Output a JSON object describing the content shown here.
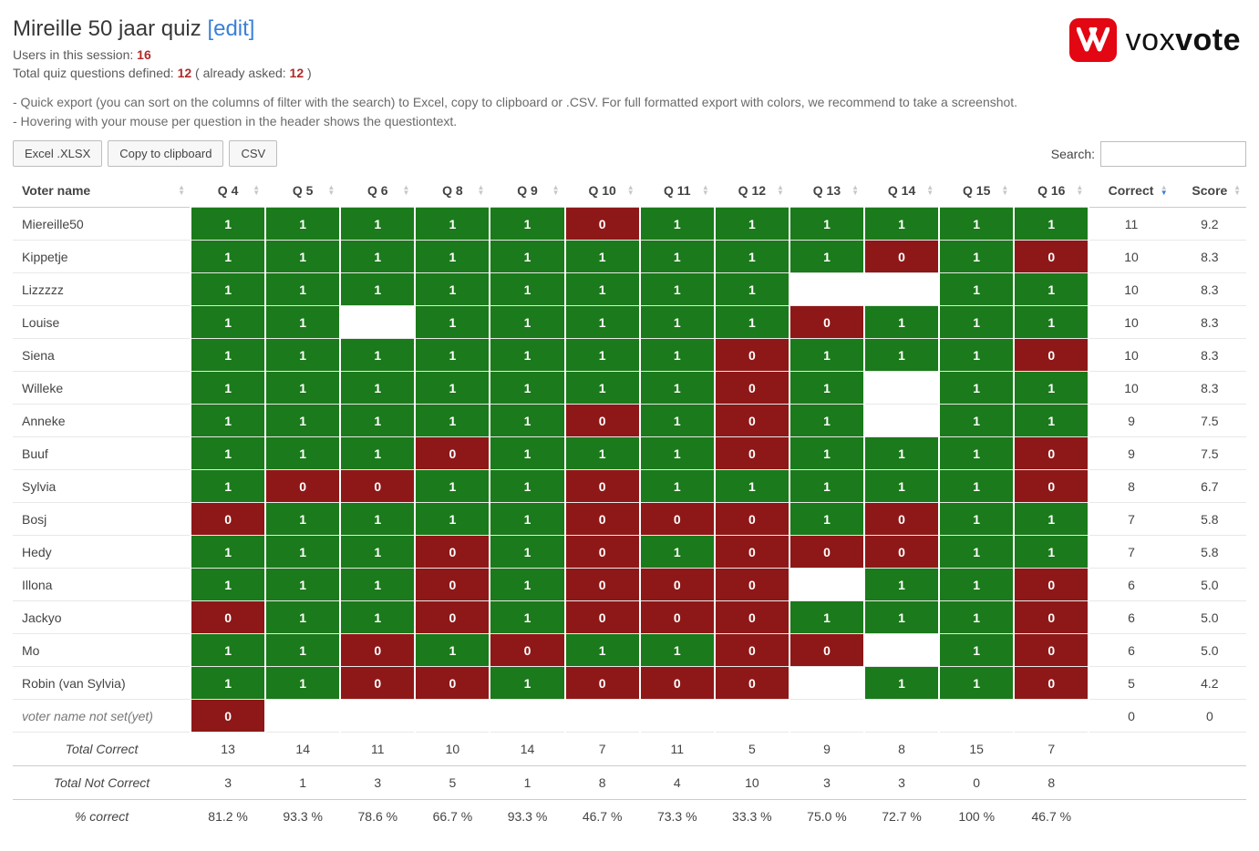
{
  "header": {
    "title": "Mireille 50 jaar quiz",
    "edit": "[edit]",
    "users_label": "Users in this session:",
    "users_value": "16",
    "questions_label_a": "Total quiz questions defined:",
    "questions_value_a": "12",
    "questions_label_b": "( already asked:",
    "questions_value_b": "12",
    "questions_label_c": ")",
    "tip1": "- Quick export (you can sort on the columns of filter with the search) to Excel, copy to clipboard or .CSV. For full formatted export with colors, we recommend to take a screenshot.",
    "tip2": "- Hovering with your mouse per question in the header shows the questiontext."
  },
  "logo": {
    "word_a": "vox",
    "word_b": "vote"
  },
  "toolbar": {
    "excel": "Excel .XLSX",
    "copy": "Copy to clipboard",
    "csv": "CSV",
    "search_label": "Search:"
  },
  "colors": {
    "correct_bg": "#1b7a1b",
    "incorrect_bg": "#8e1818"
  },
  "table": {
    "columns": {
      "name": "Voter name",
      "q": [
        "Q 4",
        "Q 5",
        "Q 6",
        "Q 8",
        "Q 9",
        "Q 10",
        "Q 11",
        "Q 12",
        "Q 13",
        "Q 14",
        "Q 15",
        "Q 16"
      ],
      "correct": "Correct",
      "score": "Score"
    },
    "rows": [
      {
        "name": "Miereille50",
        "q": [
          1,
          1,
          1,
          1,
          1,
          0,
          1,
          1,
          1,
          1,
          1,
          1
        ],
        "correct": "11",
        "score": "9.2"
      },
      {
        "name": "Kippetje",
        "q": [
          1,
          1,
          1,
          1,
          1,
          1,
          1,
          1,
          1,
          0,
          1,
          0
        ],
        "correct": "10",
        "score": "8.3"
      },
      {
        "name": "Lizzzzz",
        "q": [
          1,
          1,
          1,
          1,
          1,
          1,
          1,
          1,
          null,
          null,
          1,
          1
        ],
        "correct": "10",
        "score": "8.3"
      },
      {
        "name": "Louise",
        "q": [
          1,
          1,
          null,
          1,
          1,
          1,
          1,
          1,
          0,
          1,
          1,
          1
        ],
        "correct": "10",
        "score": "8.3"
      },
      {
        "name": "Siena",
        "q": [
          1,
          1,
          1,
          1,
          1,
          1,
          1,
          0,
          1,
          1,
          1,
          0
        ],
        "correct": "10",
        "score": "8.3"
      },
      {
        "name": "Willeke",
        "q": [
          1,
          1,
          1,
          1,
          1,
          1,
          1,
          0,
          1,
          null,
          1,
          1
        ],
        "correct": "10",
        "score": "8.3"
      },
      {
        "name": "Anneke",
        "q": [
          1,
          1,
          1,
          1,
          1,
          0,
          1,
          0,
          1,
          null,
          1,
          1
        ],
        "correct": "9",
        "score": "7.5"
      },
      {
        "name": "Buuf",
        "q": [
          1,
          1,
          1,
          0,
          1,
          1,
          1,
          0,
          1,
          1,
          1,
          0
        ],
        "correct": "9",
        "score": "7.5"
      },
      {
        "name": "Sylvia",
        "q": [
          1,
          0,
          0,
          1,
          1,
          0,
          1,
          1,
          1,
          1,
          1,
          0
        ],
        "correct": "8",
        "score": "6.7"
      },
      {
        "name": "Bosj",
        "q": [
          0,
          1,
          1,
          1,
          1,
          0,
          0,
          0,
          1,
          0,
          1,
          1
        ],
        "correct": "7",
        "score": "5.8"
      },
      {
        "name": "Hedy",
        "q": [
          1,
          1,
          1,
          0,
          1,
          0,
          1,
          0,
          0,
          0,
          1,
          1
        ],
        "correct": "7",
        "score": "5.8"
      },
      {
        "name": "Illona",
        "q": [
          1,
          1,
          1,
          0,
          1,
          0,
          0,
          0,
          null,
          1,
          1,
          0
        ],
        "correct": "6",
        "score": "5.0"
      },
      {
        "name": "Jackyo",
        "q": [
          0,
          1,
          1,
          0,
          1,
          0,
          0,
          0,
          1,
          1,
          1,
          0
        ],
        "correct": "6",
        "score": "5.0"
      },
      {
        "name": "Mo",
        "q": [
          1,
          1,
          0,
          1,
          0,
          1,
          1,
          0,
          0,
          null,
          1,
          0
        ],
        "correct": "6",
        "score": "5.0"
      },
      {
        "name": "Robin (van Sylvia)",
        "q": [
          1,
          1,
          0,
          0,
          1,
          0,
          0,
          0,
          null,
          1,
          1,
          0
        ],
        "correct": "5",
        "score": "4.2"
      },
      {
        "name": "voter name not set(yet)",
        "q": [
          0,
          null,
          null,
          null,
          null,
          null,
          null,
          null,
          null,
          null,
          null,
          null
        ],
        "correct": "0",
        "score": "0",
        "notset": true
      }
    ],
    "footer": {
      "total_correct": {
        "label": "Total Correct",
        "v": [
          "13",
          "14",
          "11",
          "10",
          "14",
          "7",
          "11",
          "5",
          "9",
          "8",
          "15",
          "7"
        ]
      },
      "total_incorrect": {
        "label": "Total Not Correct",
        "v": [
          "3",
          "1",
          "3",
          "5",
          "1",
          "8",
          "4",
          "10",
          "3",
          "3",
          "0",
          "8"
        ]
      },
      "pct": {
        "label": "% correct",
        "v": [
          "81.2 %",
          "93.3 %",
          "78.6 %",
          "66.7 %",
          "93.3 %",
          "46.7 %",
          "73.3 %",
          "33.3 %",
          "75.0 %",
          "72.7 %",
          "100 %",
          "46.7 %"
        ]
      }
    }
  }
}
